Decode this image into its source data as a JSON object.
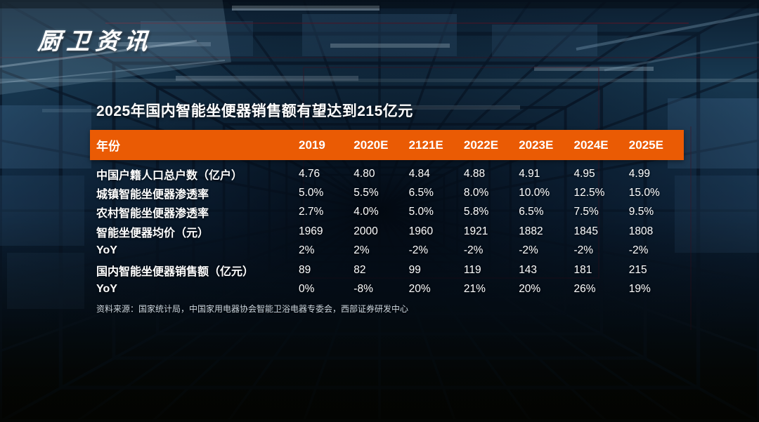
{
  "logo": "厨卫资讯",
  "title": "2025年国内智能坐便器销售额有望达到215亿元",
  "table": {
    "header": [
      "年份",
      "2019",
      "2020E",
      "2121E",
      "2022E",
      "2023E",
      "2024E",
      "2025E"
    ],
    "rows": [
      {
        "label": "中国户籍人口总户数（亿户）",
        "values": [
          "4.76",
          "4.80",
          "4.84",
          "4.88",
          "4.91",
          "4.95",
          "4.99"
        ]
      },
      {
        "label": "城镇智能坐便器渗透率",
        "values": [
          "5.0%",
          "5.5%",
          "6.5%",
          "8.0%",
          "10.0%",
          "12.5%",
          "15.0%"
        ]
      },
      {
        "label": "农村智能坐便器渗透率",
        "values": [
          "2.7%",
          "4.0%",
          "5.0%",
          "5.8%",
          "6.5%",
          "7.5%",
          "9.5%"
        ]
      },
      {
        "label": "智能坐便器均价（元）",
        "values": [
          "1969",
          "2000",
          "1960",
          "1921",
          "1882",
          "1845",
          "1808"
        ]
      },
      {
        "label": "YoY",
        "values": [
          "2%",
          "2%",
          "-2%",
          "-2%",
          "-2%",
          "-2%",
          "-2%"
        ]
      },
      {
        "label": "国内智能坐便器销售额（亿元）",
        "values": [
          "89",
          "82",
          "99",
          "119",
          "143",
          "181",
          "215"
        ]
      },
      {
        "label": "YoY",
        "values": [
          "0%",
          "-8%",
          "20%",
          "21%",
          "20%",
          "26%",
          "19%"
        ]
      }
    ]
  },
  "source": "资料来源：国家统计局，中国家用电器协会智能卫浴电器专委会，西部证券研发中心",
  "colors": {
    "accent_orange": "#EA5B04",
    "text_white": "#FFFFFF"
  },
  "chart_data": {
    "type": "table",
    "title": "2025年国内智能坐便器销售额有望达到215亿元",
    "categories": [
      "2019",
      "2020E",
      "2121E",
      "2022E",
      "2023E",
      "2024E",
      "2025E"
    ],
    "series": [
      {
        "name": "中国户籍人口总户数（亿户）",
        "values": [
          4.76,
          4.8,
          4.84,
          4.88,
          4.91,
          4.95,
          4.99
        ]
      },
      {
        "name": "城镇智能坐便器渗透率(%)",
        "values": [
          5.0,
          5.5,
          6.5,
          8.0,
          10.0,
          12.5,
          15.0
        ]
      },
      {
        "name": "农村智能坐便器渗透率(%)",
        "values": [
          2.7,
          4.0,
          5.0,
          5.8,
          6.5,
          7.5,
          9.5
        ]
      },
      {
        "name": "智能坐便器均价（元）",
        "values": [
          1969,
          2000,
          1960,
          1921,
          1882,
          1845,
          1808
        ]
      },
      {
        "name": "均价YoY(%)",
        "values": [
          2,
          2,
          -2,
          -2,
          -2,
          -2,
          -2
        ]
      },
      {
        "name": "国内智能坐便器销售额（亿元）",
        "values": [
          89,
          82,
          99,
          119,
          143,
          181,
          215
        ]
      },
      {
        "name": "销售额YoY(%)",
        "values": [
          0,
          -8,
          20,
          21,
          20,
          26,
          19
        ]
      }
    ],
    "source": "资料来源：国家统计局，中国家用电器协会智能卫浴电器专委会，西部证券研发中心"
  }
}
